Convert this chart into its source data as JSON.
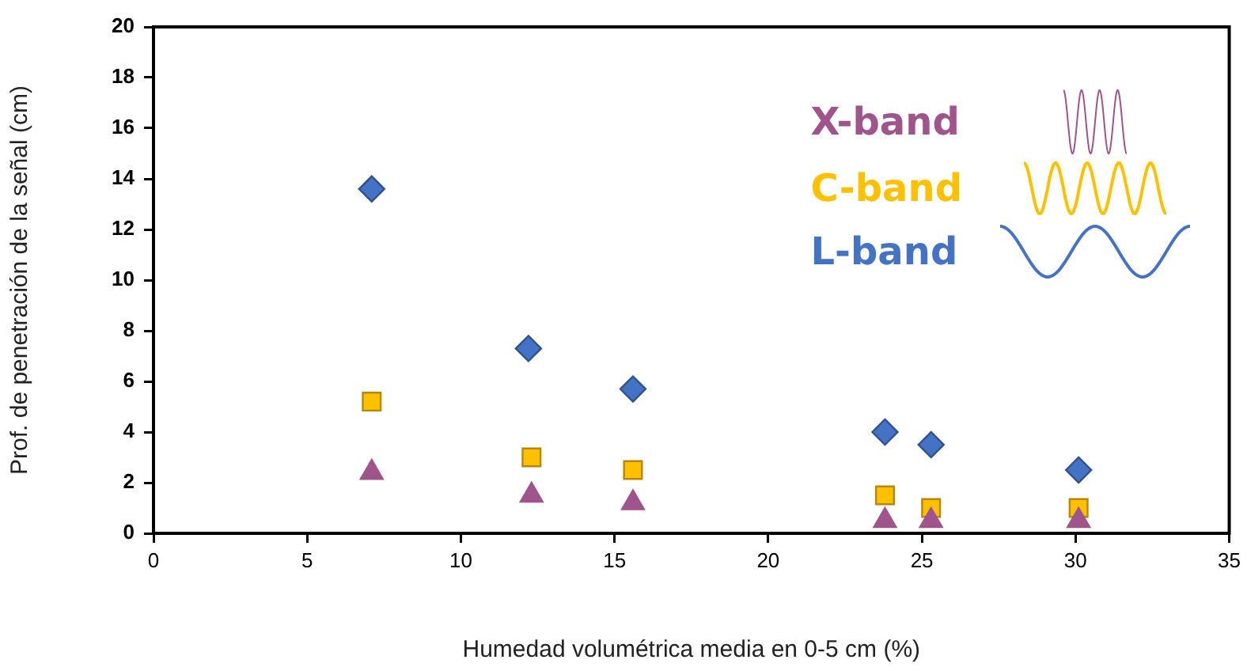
{
  "chart_data": {
    "type": "scatter",
    "xlabel": "Humedad volumétrica media en 0-5 cm (%)",
    "ylabel": "Prof. de penetración de la señal (cm)",
    "xlim": [
      0,
      35
    ],
    "xticks": [
      0,
      5,
      10,
      15,
      20,
      25,
      30,
      35
    ],
    "ylim": [
      0,
      20
    ],
    "yticks": [
      0,
      2,
      4,
      6,
      8,
      10,
      12,
      14,
      16,
      18,
      20
    ],
    "grid": false,
    "legend": "top right",
    "series": [
      {
        "name": "X-band",
        "color": "#a0548c",
        "marker": "triangle",
        "x": [
          7.1,
          12.3,
          15.6,
          23.8,
          25.3,
          30.1
        ],
        "values": [
          2.4,
          1.5,
          1.2,
          0.5,
          0.5,
          0.5
        ]
      },
      {
        "name": "C-band",
        "color": "#ffc000",
        "marker": "square",
        "x": [
          7.1,
          12.3,
          15.6,
          23.8,
          25.3,
          30.1
        ],
        "values": [
          5.2,
          3.0,
          2.5,
          1.5,
          1.0,
          1.0
        ]
      },
      {
        "name": "L-band",
        "color": "#4472c4",
        "marker": "diamond",
        "x": [
          7.1,
          12.2,
          15.6,
          23.8,
          25.3,
          30.1
        ],
        "values": [
          13.6,
          7.3,
          5.7,
          4.0,
          3.5,
          2.5
        ]
      }
    ]
  }
}
